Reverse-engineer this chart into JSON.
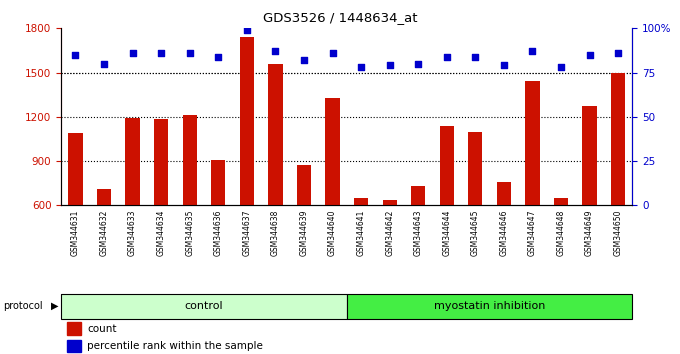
{
  "title": "GDS3526 / 1448634_at",
  "samples": [
    "GSM344631",
    "GSM344632",
    "GSM344633",
    "GSM344634",
    "GSM344635",
    "GSM344636",
    "GSM344637",
    "GSM344638",
    "GSM344639",
    "GSM344640",
    "GSM344641",
    "GSM344642",
    "GSM344643",
    "GSM344644",
    "GSM344645",
    "GSM344646",
    "GSM344647",
    "GSM344648",
    "GSM344649",
    "GSM344650"
  ],
  "counts": [
    1090,
    710,
    1195,
    1185,
    1210,
    910,
    1740,
    1560,
    870,
    1330,
    650,
    635,
    730,
    1140,
    1095,
    760,
    1440,
    650,
    1270,
    1500
  ],
  "percentile_ranks": [
    85,
    80,
    86,
    86,
    86,
    84,
    99,
    87,
    82,
    86,
    78,
    79,
    80,
    84,
    84,
    79,
    87,
    78,
    85,
    86
  ],
  "bar_color": "#cc1100",
  "dot_color": "#0000cc",
  "control_count": 10,
  "control_label": "control",
  "inhibition_label": "myostatin inhibition",
  "control_bg": "#ccffcc",
  "inhibition_bg": "#44ee44",
  "xlabels_bg": "#cccccc",
  "ylim_left": [
    600,
    1800
  ],
  "ylim_right": [
    0,
    100
  ],
  "yticks_left": [
    600,
    900,
    1200,
    1500,
    1800
  ],
  "yticks_right": [
    0,
    25,
    50,
    75,
    100
  ],
  "grid_values": [
    900,
    1200,
    1500
  ],
  "background_color": "#ffffff",
  "legend_count_label": "count",
  "legend_pct_label": "percentile rank within the sample",
  "protocol_label": "protocol"
}
